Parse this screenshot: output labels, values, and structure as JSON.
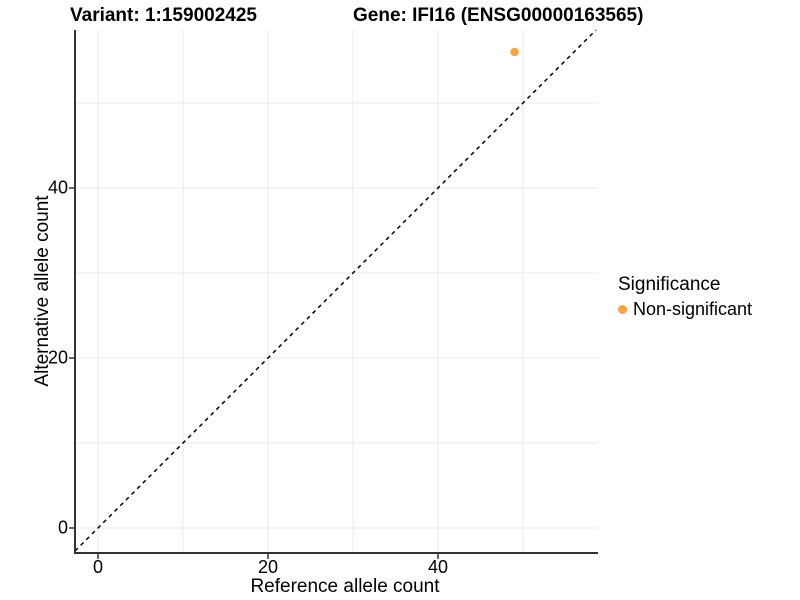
{
  "chart_data": {
    "type": "scatter",
    "title_left": "Variant: 1:159002425",
    "title_right": "Gene: IFI16 (ENSG00000163565)",
    "xlabel": "Reference allele count",
    "ylabel": "Alternative allele count",
    "x_ticks": [
      "0",
      "20",
      "40"
    ],
    "y_ticks": [
      "0",
      "20",
      "40"
    ],
    "x_tick_values": [
      0,
      20,
      40
    ],
    "y_tick_values": [
      0,
      20,
      40
    ],
    "grid_values": [
      0,
      10,
      20,
      30,
      40,
      50
    ],
    "grid": true,
    "xlim": [
      -2.9,
      58.8
    ],
    "ylim": [
      -2.9,
      58.6
    ],
    "identity_line": {
      "equation": "y = x",
      "style": "dashed",
      "color": "#000000"
    },
    "series": [
      {
        "name": "Non-significant",
        "color": "#F9A242",
        "points": [
          {
            "x": 49,
            "y": 56
          }
        ]
      }
    ],
    "legend": {
      "title": "Significance",
      "position": "right",
      "items": [
        {
          "label": "Non-significant",
          "color": "#F9A242"
        }
      ]
    },
    "colors": {
      "background": "#FFFFFF",
      "grid": "#E8E8E8",
      "axis": "#333333",
      "text": "#000000"
    }
  }
}
